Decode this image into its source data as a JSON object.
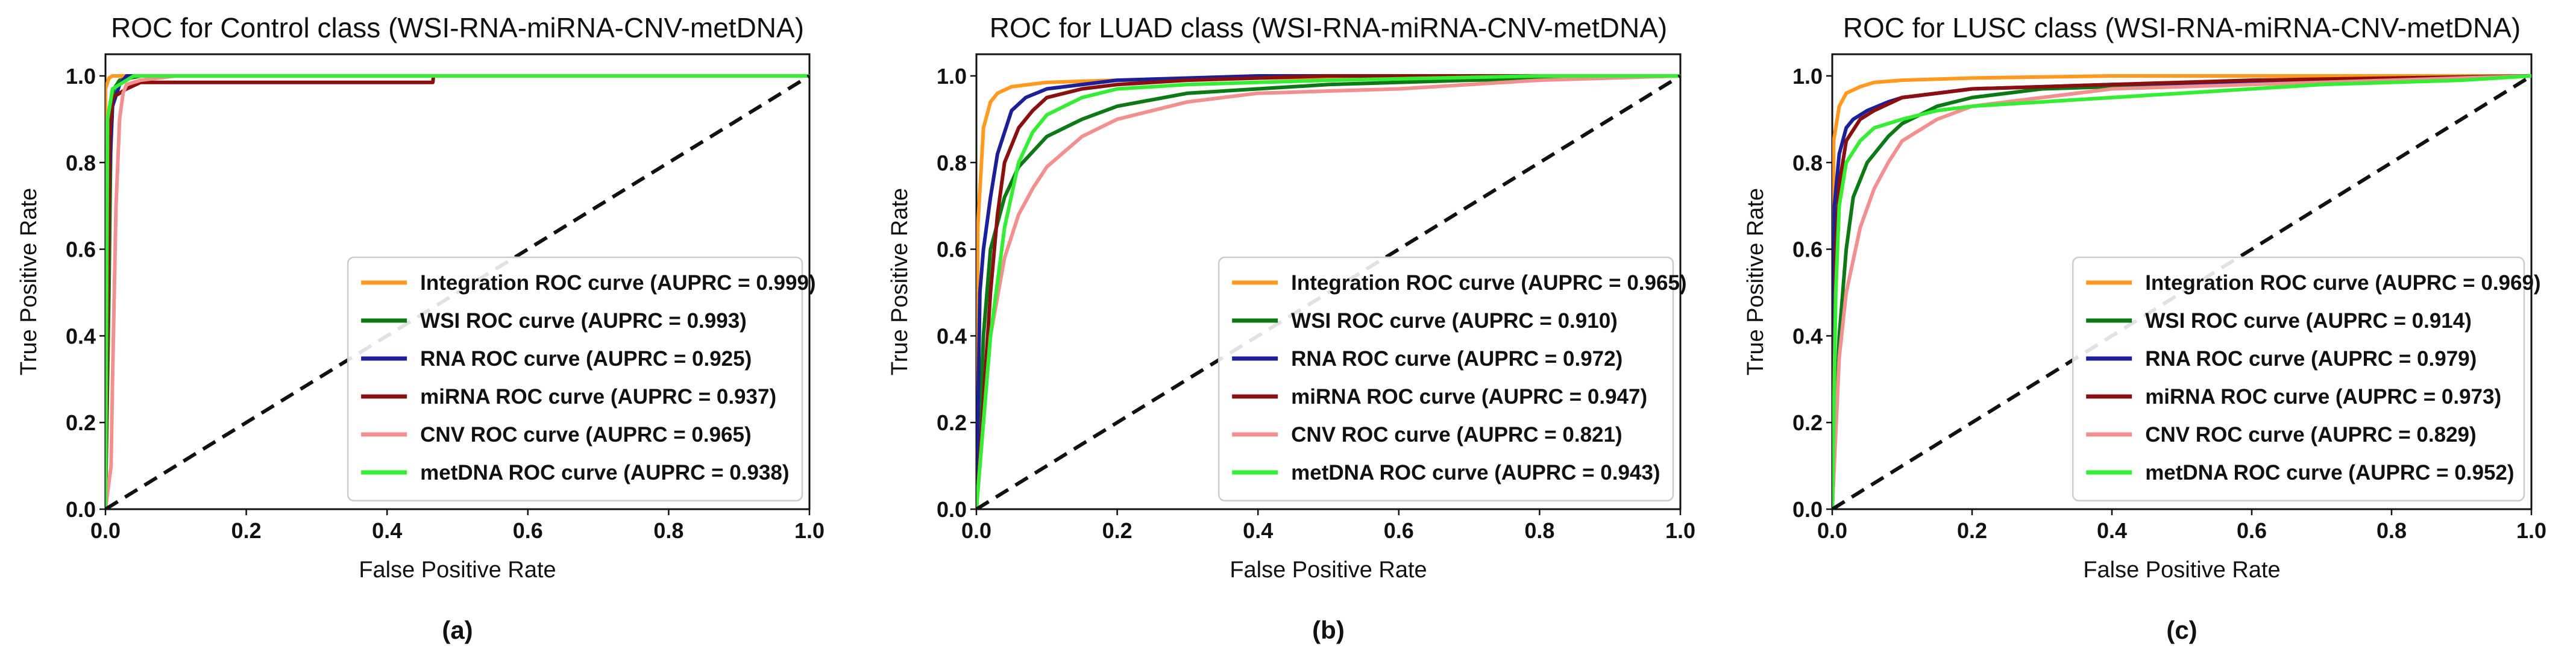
{
  "chart_data": [
    {
      "type": "line",
      "title": "ROC for Control class (WSI-RNA-miRNA-CNV-metDNA)",
      "xlabel": "False Positive Rate",
      "ylabel": "True Positive Rate",
      "xlim": [
        0.0,
        1.0
      ],
      "ylim": [
        0.0,
        1.05
      ],
      "xticks": [
        "0.0",
        "0.2",
        "0.4",
        "0.6",
        "0.8",
        "1.0"
      ],
      "yticks": [
        "0.0",
        "0.2",
        "0.4",
        "0.6",
        "0.8",
        "1.0"
      ],
      "legend_position": "lower-right",
      "caption": "(a)",
      "series": [
        {
          "name": "Integration ROC curve (AUPRC = 0.999)",
          "color": "#ff9a1f",
          "x": [
            0.0,
            0.0,
            0.005,
            0.01,
            1.0
          ],
          "y": [
            0.0,
            0.97,
            0.995,
            1.0,
            1.0
          ]
        },
        {
          "name": "WSI ROC curve (AUPRC = 0.993)",
          "color": "#0b7a14",
          "x": [
            0.0,
            0.005,
            0.008,
            0.012,
            0.02,
            0.05,
            1.0
          ],
          "y": [
            0.0,
            0.5,
            0.9,
            0.97,
            0.99,
            1.0,
            1.0
          ]
        },
        {
          "name": "RNA ROC curve (AUPRC = 0.925)",
          "color": "#1b1f99",
          "x": [
            0.0,
            0.004,
            0.01,
            0.02,
            0.03,
            0.1,
            1.0
          ],
          "y": [
            0.0,
            0.7,
            0.93,
            0.98,
            1.0,
            1.0,
            1.0
          ]
        },
        {
          "name": "miRNA ROC curve (AUPRC = 0.937)",
          "color": "#8b0f0f",
          "x": [
            0.0,
            0.006,
            0.01,
            0.02,
            0.03,
            0.05,
            0.1,
            0.3,
            0.465,
            0.466,
            1.0
          ],
          "y": [
            0.0,
            0.85,
            0.95,
            0.96,
            0.97,
            0.985,
            0.985,
            0.985,
            0.985,
            1.0,
            1.0
          ]
        },
        {
          "name": "CNV ROC curve (AUPRC = 0.965)",
          "color": "#f29090",
          "x": [
            0.0,
            0.008,
            0.01,
            0.015,
            0.02,
            0.025,
            0.03,
            0.05,
            0.1,
            1.0
          ],
          "y": [
            0.0,
            0.1,
            0.3,
            0.7,
            0.9,
            0.96,
            0.98,
            0.99,
            1.0,
            1.0
          ]
        },
        {
          "name": "metDNA ROC curve (AUPRC = 0.938)",
          "color": "#33ee33",
          "x": [
            0.0,
            0.003,
            0.01,
            0.02,
            0.04,
            1.0
          ],
          "y": [
            0.0,
            0.9,
            0.97,
            0.98,
            1.0,
            1.0
          ]
        }
      ]
    },
    {
      "type": "line",
      "title": "ROC for LUAD class (WSI-RNA-miRNA-CNV-metDNA)",
      "xlabel": "False Positive Rate",
      "ylabel": "True Positive Rate",
      "xlim": [
        0.0,
        1.0
      ],
      "ylim": [
        0.0,
        1.05
      ],
      "xticks": [
        "0.0",
        "0.2",
        "0.4",
        "0.6",
        "0.8",
        "1.0"
      ],
      "yticks": [
        "0.0",
        "0.2",
        "0.4",
        "0.6",
        "0.8",
        "1.0"
      ],
      "legend_position": "lower-right",
      "caption": "(b)",
      "series": [
        {
          "name": "Integration ROC curve (AUPRC = 0.965)",
          "color": "#ff9a1f",
          "x": [
            0.0,
            0.002,
            0.01,
            0.02,
            0.03,
            0.05,
            0.1,
            0.2,
            0.4,
            0.7,
            1.0
          ],
          "y": [
            0.0,
            0.65,
            0.88,
            0.94,
            0.96,
            0.975,
            0.985,
            0.99,
            0.995,
            1.0,
            1.0
          ]
        },
        {
          "name": "WSI ROC curve (AUPRC = 0.910)",
          "color": "#0b7a14",
          "x": [
            0.0,
            0.01,
            0.02,
            0.04,
            0.06,
            0.1,
            0.15,
            0.2,
            0.3,
            0.5,
            0.7,
            1.0
          ],
          "y": [
            0.0,
            0.4,
            0.6,
            0.72,
            0.79,
            0.86,
            0.9,
            0.93,
            0.96,
            0.98,
            0.99,
            1.0
          ]
        },
        {
          "name": "RNA ROC curve (AUPRC = 0.972)",
          "color": "#1b1f99",
          "x": [
            0.0,
            0.005,
            0.01,
            0.02,
            0.03,
            0.05,
            0.07,
            0.1,
            0.2,
            0.4,
            1.0
          ],
          "y": [
            0.0,
            0.5,
            0.6,
            0.72,
            0.82,
            0.92,
            0.95,
            0.97,
            0.99,
            1.0,
            1.0
          ]
        },
        {
          "name": "miRNA ROC curve (AUPRC = 0.947)",
          "color": "#8b0f0f",
          "x": [
            0.0,
            0.01,
            0.02,
            0.03,
            0.04,
            0.06,
            0.08,
            0.1,
            0.15,
            0.2,
            0.3,
            0.5,
            1.0
          ],
          "y": [
            0.0,
            0.25,
            0.5,
            0.68,
            0.8,
            0.88,
            0.92,
            0.95,
            0.97,
            0.98,
            0.99,
            1.0,
            1.0
          ]
        },
        {
          "name": "CNV ROC curve (AUPRC = 0.821)",
          "color": "#f29090",
          "x": [
            0.0,
            0.02,
            0.04,
            0.06,
            0.08,
            0.1,
            0.15,
            0.2,
            0.3,
            0.4,
            0.6,
            0.8,
            1.0
          ],
          "y": [
            0.0,
            0.4,
            0.58,
            0.68,
            0.74,
            0.79,
            0.86,
            0.9,
            0.94,
            0.96,
            0.97,
            0.99,
            1.0
          ]
        },
        {
          "name": "metDNA ROC curve (AUPRC = 0.943)",
          "color": "#33ee33",
          "x": [
            0.0,
            0.005,
            0.02,
            0.04,
            0.06,
            0.08,
            0.1,
            0.15,
            0.2,
            0.3,
            0.5,
            0.8,
            1.0
          ],
          "y": [
            0.0,
            0.1,
            0.4,
            0.65,
            0.8,
            0.87,
            0.91,
            0.95,
            0.97,
            0.98,
            0.99,
            1.0,
            1.0
          ]
        }
      ]
    },
    {
      "type": "line",
      "title": "ROC for LUSC class (WSI-RNA-miRNA-CNV-metDNA)",
      "xlabel": "False Positive Rate",
      "ylabel": "True Positive Rate",
      "xlim": [
        0.0,
        1.0
      ],
      "ylim": [
        0.0,
        1.05
      ],
      "xticks": [
        "0.0",
        "0.2",
        "0.4",
        "0.6",
        "0.8",
        "1.0"
      ],
      "yticks": [
        "0.0",
        "0.2",
        "0.4",
        "0.6",
        "0.8",
        "1.0"
      ],
      "legend_position": "lower-right",
      "caption": "(c)",
      "series": [
        {
          "name": "Integration ROC curve (AUPRC = 0.969)",
          "color": "#ff9a1f",
          "x": [
            0.0,
            0.002,
            0.01,
            0.02,
            0.04,
            0.06,
            0.1,
            0.2,
            0.4,
            0.7,
            1.0
          ],
          "y": [
            0.0,
            0.85,
            0.93,
            0.96,
            0.975,
            0.985,
            0.99,
            0.995,
            1.0,
            1.0,
            1.0
          ]
        },
        {
          "name": "WSI ROC curve (AUPRC = 0.914)",
          "color": "#0b7a14",
          "x": [
            0.0,
            0.01,
            0.02,
            0.03,
            0.05,
            0.08,
            0.1,
            0.15,
            0.2,
            0.3,
            0.5,
            0.7,
            1.0
          ],
          "y": [
            0.0,
            0.4,
            0.6,
            0.72,
            0.8,
            0.86,
            0.89,
            0.93,
            0.95,
            0.97,
            0.98,
            0.99,
            1.0
          ]
        },
        {
          "name": "RNA ROC curve (AUPRC = 0.979)",
          "color": "#1b1f99",
          "x": [
            0.0,
            0.003,
            0.01,
            0.02,
            0.03,
            0.05,
            0.08,
            0.1,
            0.2,
            0.4,
            0.7,
            1.0
          ],
          "y": [
            0.0,
            0.7,
            0.82,
            0.88,
            0.9,
            0.92,
            0.94,
            0.95,
            0.97,
            0.98,
            0.99,
            1.0
          ]
        },
        {
          "name": "miRNA ROC curve (AUPRC = 0.973)",
          "color": "#8b0f0f",
          "x": [
            0.0,
            0.005,
            0.01,
            0.02,
            0.04,
            0.06,
            0.1,
            0.2,
            0.4,
            0.6,
            1.0
          ],
          "y": [
            0.0,
            0.6,
            0.75,
            0.85,
            0.9,
            0.92,
            0.95,
            0.97,
            0.98,
            0.99,
            1.0
          ]
        },
        {
          "name": "CNV ROC curve (AUPRC = 0.829)",
          "color": "#f29090",
          "x": [
            0.0,
            0.01,
            0.02,
            0.04,
            0.06,
            0.08,
            0.1,
            0.15,
            0.2,
            0.3,
            0.4,
            0.6,
            0.8,
            1.0
          ],
          "y": [
            0.0,
            0.35,
            0.5,
            0.65,
            0.74,
            0.8,
            0.85,
            0.9,
            0.93,
            0.95,
            0.97,
            0.98,
            0.99,
            1.0
          ]
        },
        {
          "name": "metDNA ROC curve (AUPRC = 0.952)",
          "color": "#33ee33",
          "x": [
            0.0,
            0.005,
            0.01,
            0.02,
            0.04,
            0.06,
            0.1,
            0.15,
            0.2,
            0.3,
            0.5,
            0.7,
            0.9,
            1.0
          ],
          "y": [
            0.0,
            0.5,
            0.7,
            0.8,
            0.85,
            0.88,
            0.9,
            0.92,
            0.93,
            0.94,
            0.96,
            0.98,
            0.99,
            1.0
          ]
        }
      ]
    }
  ]
}
